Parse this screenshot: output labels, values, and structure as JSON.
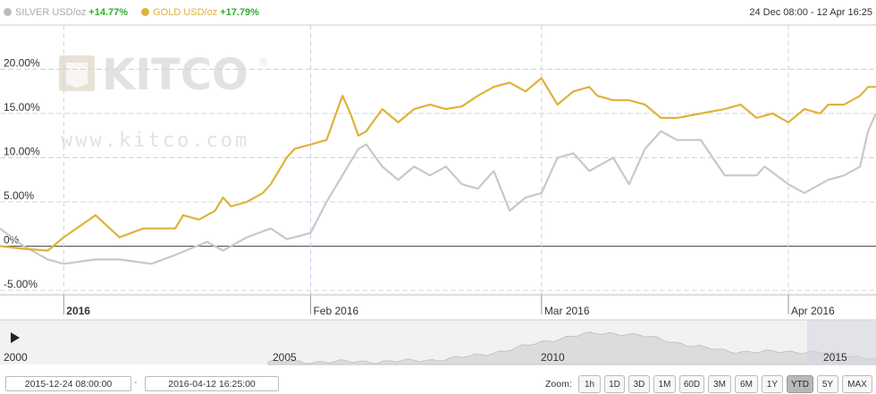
{
  "legend": {
    "silver": {
      "name": "SILVER USD/oz",
      "change": "+14.77%",
      "color": "#bbbbbb"
    },
    "gold": {
      "name": "GOLD USD/oz",
      "change": "+17.79%",
      "color": "#e0b23a"
    }
  },
  "date_range": "24 Dec 08:00 - 12 Apr 16:25",
  "watermark": {
    "brand": "KITCO",
    "registered": "®",
    "url": "www.kitco.com"
  },
  "controls": {
    "from_date": "2015-12-24 08:00:00",
    "separator": "-",
    "to_date": "2016-04-12 16:25:00",
    "zoom_label": "Zoom:",
    "zoom_buttons": [
      "1h",
      "1D",
      "3D",
      "1M",
      "60D",
      "3M",
      "6M",
      "1Y",
      "YTD",
      "5Y",
      "MAX"
    ],
    "active_zoom": "YTD"
  },
  "navigator": {
    "year_labels": [
      "2000",
      "2005",
      "2010",
      "2015"
    ],
    "play_icon": "play-icon"
  },
  "chart_data": {
    "type": "line",
    "y_tick_labels": [
      "20.00%",
      "15.00%",
      "10.00%",
      "5.00%",
      "0%",
      "-5.00%"
    ],
    "y_ticks": [
      20,
      15,
      10,
      5,
      0,
      -5
    ],
    "ylim": [
      -5.5,
      25
    ],
    "x_tick_labels": [
      "2016",
      "Feb 2016",
      "Mar 2016",
      "Apr 2016"
    ],
    "x_ticks": [
      "2016-01-01",
      "2016-02-01",
      "2016-03-01",
      "2016-04-01"
    ],
    "xlim": [
      "2015-12-24",
      "2016-04-12"
    ],
    "grid": true,
    "series": [
      {
        "name": "SILVER USD/oz",
        "color": "#c8c8c8",
        "x": [
          "2015-12-24",
          "2015-12-27",
          "2015-12-30",
          "2016-01-01",
          "2016-01-05",
          "2016-01-08",
          "2016-01-12",
          "2016-01-15",
          "2016-01-19",
          "2016-01-21",
          "2016-01-24",
          "2016-01-27",
          "2016-01-29",
          "2016-01-30",
          "2016-02-01",
          "2016-02-03",
          "2016-02-05",
          "2016-02-07",
          "2016-02-08",
          "2016-02-10",
          "2016-02-12",
          "2016-02-14",
          "2016-02-16",
          "2016-02-18",
          "2016-02-20",
          "2016-02-22",
          "2016-02-24",
          "2016-02-26",
          "2016-02-28",
          "2016-03-01",
          "2016-03-03",
          "2016-03-05",
          "2016-03-07",
          "2016-03-08",
          "2016-03-10",
          "2016-03-12",
          "2016-03-14",
          "2016-03-16",
          "2016-03-18",
          "2016-03-21",
          "2016-03-24",
          "2016-03-26",
          "2016-03-28",
          "2016-03-29",
          "2016-04-01",
          "2016-04-03",
          "2016-04-05",
          "2016-04-06",
          "2016-04-08",
          "2016-04-10",
          "2016-04-11",
          "2016-04-12"
        ],
        "values": [
          2,
          0,
          -1.5,
          -2,
          -1.5,
          -1.5,
          -2,
          -1,
          0.5,
          -0.5,
          1,
          2,
          0.8,
          1,
          1.5,
          5,
          8,
          11,
          11.5,
          9,
          7.5,
          9,
          8,
          9,
          7,
          6.5,
          8.5,
          4,
          5.5,
          6,
          10,
          10.5,
          8.5,
          9,
          10,
          7,
          11,
          13,
          12,
          12,
          8,
          8,
          8,
          9,
          7,
          6,
          7,
          7.5,
          8,
          9,
          13,
          15
        ]
      },
      {
        "name": "GOLD USD/oz",
        "color": "#e0b23a",
        "x": [
          "2015-12-24",
          "2015-12-27",
          "2015-12-30",
          "2016-01-01",
          "2016-01-05",
          "2016-01-08",
          "2016-01-11",
          "2016-01-13",
          "2016-01-15",
          "2016-01-16",
          "2016-01-18",
          "2016-01-20",
          "2016-01-21",
          "2016-01-22",
          "2016-01-24",
          "2016-01-26",
          "2016-01-27",
          "2016-01-29",
          "2016-01-30",
          "2016-02-01",
          "2016-02-03",
          "2016-02-05",
          "2016-02-06",
          "2016-02-07",
          "2016-02-08",
          "2016-02-10",
          "2016-02-12",
          "2016-02-14",
          "2016-02-16",
          "2016-02-18",
          "2016-02-20",
          "2016-02-22",
          "2016-02-24",
          "2016-02-26",
          "2016-02-28",
          "2016-03-01",
          "2016-03-03",
          "2016-03-05",
          "2016-03-07",
          "2016-03-08",
          "2016-03-10",
          "2016-03-12",
          "2016-03-14",
          "2016-03-16",
          "2016-03-18",
          "2016-03-21",
          "2016-03-24",
          "2016-03-26",
          "2016-03-28",
          "2016-03-30",
          "2016-04-01",
          "2016-04-03",
          "2016-04-05",
          "2016-04-06",
          "2016-04-08",
          "2016-04-10",
          "2016-04-11",
          "2016-04-12"
        ],
        "values": [
          0,
          -0.3,
          -0.5,
          1,
          3.5,
          1,
          2,
          2,
          2,
          3.5,
          3,
          4,
          5.5,
          4.5,
          5,
          6,
          7,
          10,
          11,
          11.5,
          12,
          17,
          15,
          12.5,
          13,
          15.5,
          14,
          15.5,
          16,
          15.5,
          15.8,
          17,
          18,
          18.5,
          17.5,
          19,
          16,
          17.5,
          18,
          17,
          16.5,
          16.5,
          16,
          14.5,
          14.5,
          15,
          15.5,
          16,
          14.5,
          15,
          14,
          15.5,
          15,
          16,
          16,
          17,
          18,
          18
        ]
      }
    ]
  }
}
